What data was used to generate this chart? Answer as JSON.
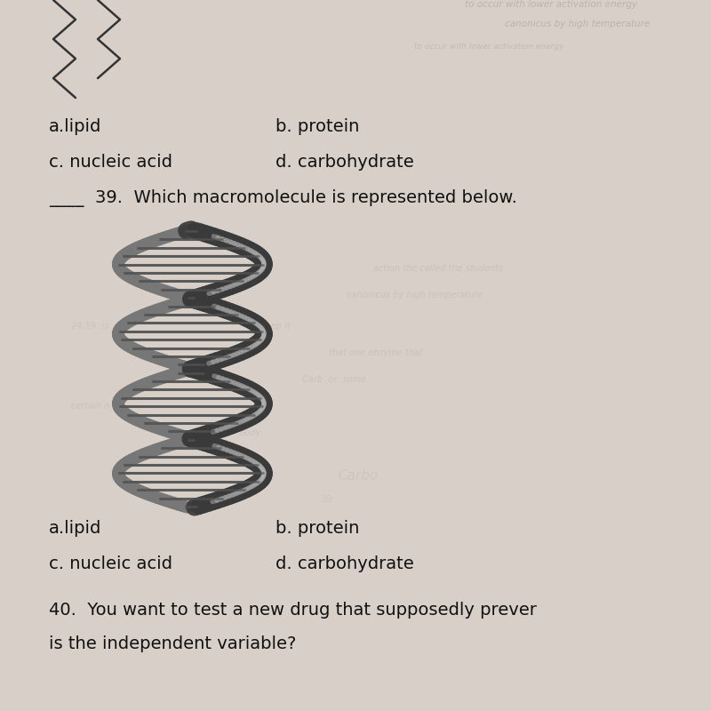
{
  "background_color": "#d8d0c8",
  "title_text": "____  39.  Which macromolecule is represented below.",
  "ans_fontsize": 14,
  "title_fontsize": 14,
  "q40_fontsize": 14,
  "answer_a1": "a.lipid",
  "answer_b1": "b. protein",
  "answer_c1": "c. nucleic acid",
  "answer_d1": "d. carbohydrate",
  "answer_a2": "a.lipid",
  "answer_b2": "b. protein",
  "answer_c2": "c. nucleic acid",
  "answer_d2": "d. carbohydrate",
  "zigzag_color": "#333333",
  "dna_strand_dark": "#3a3a3a",
  "dna_strand_mid": "#777777",
  "dna_rung_color": "#555555",
  "dna_highlight": "#bbbbbb"
}
